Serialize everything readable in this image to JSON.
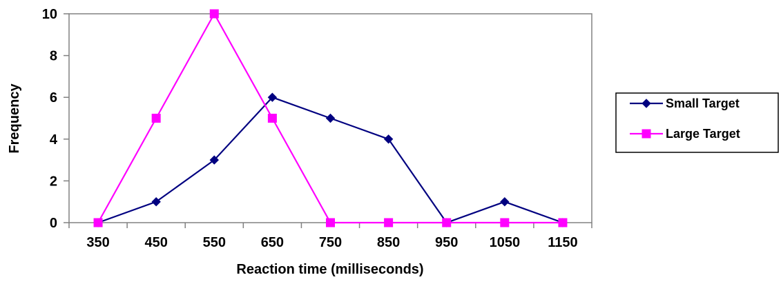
{
  "chart_data": {
    "type": "line",
    "x": [
      350,
      450,
      550,
      650,
      750,
      850,
      950,
      1050,
      1150
    ],
    "xlabel": "Reaction time (milliseconds)",
    "ylabel": "Frequency",
    "ylim": [
      0,
      10
    ],
    "yticks": [
      0,
      2,
      4,
      6,
      8,
      10
    ],
    "grid": false,
    "legend_position": "right",
    "series": [
      {
        "name": "Small Target",
        "color": "#000080",
        "marker": "diamond",
        "values": [
          0,
          1,
          3,
          6,
          5,
          4,
          0,
          1,
          0
        ]
      },
      {
        "name": "Large Target",
        "color": "#FF00FF",
        "marker": "square",
        "values": [
          0,
          5,
          10,
          5,
          0,
          0,
          0,
          0,
          0
        ]
      }
    ]
  }
}
